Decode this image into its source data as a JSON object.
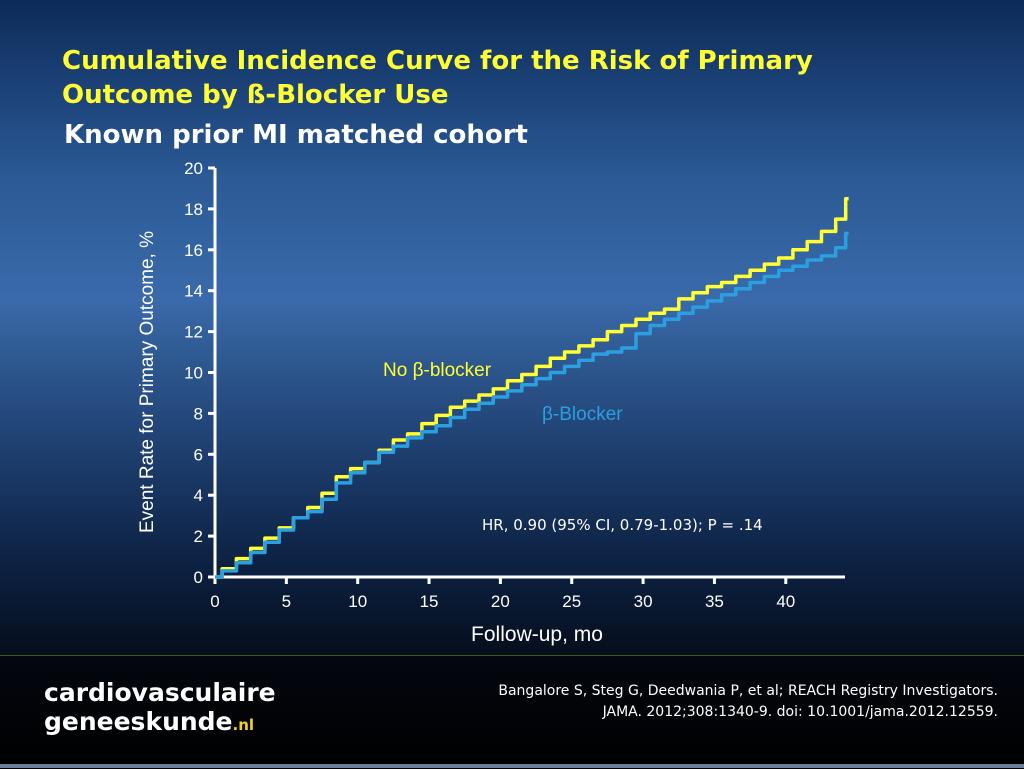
{
  "slide": {
    "title_line1": "Cumulative Incidence Curve for the Risk of Primary",
    "title_line2": "Outcome by ß-Blocker Use",
    "subtitle": "Known prior MI matched cohort"
  },
  "chart_data": {
    "type": "line",
    "xlabel": "Follow-up, mo",
    "ylabel": "Event Rate for Primary Outcome, %",
    "xlim": [
      0,
      44.5
    ],
    "ylim": [
      0,
      20
    ],
    "x_ticks": [
      0,
      5,
      10,
      15,
      20,
      25,
      30,
      35,
      40
    ],
    "y_ticks": [
      0,
      2,
      4,
      6,
      8,
      10,
      12,
      14,
      16,
      18,
      20
    ],
    "grid": false,
    "series": [
      {
        "name": "No β-blocker",
        "color": "#ffff33",
        "points": [
          [
            0,
            0
          ],
          [
            1,
            0.4
          ],
          [
            2,
            0.9
          ],
          [
            3,
            1.4
          ],
          [
            4,
            1.9
          ],
          [
            5,
            2.4
          ],
          [
            6,
            2.9
          ],
          [
            7,
            3.4
          ],
          [
            8,
            4.1
          ],
          [
            9,
            4.9
          ],
          [
            10,
            5.3
          ],
          [
            11,
            5.6
          ],
          [
            12,
            6.2
          ],
          [
            13,
            6.7
          ],
          [
            14,
            7.0
          ],
          [
            15,
            7.5
          ],
          [
            16,
            7.9
          ],
          [
            17,
            8.3
          ],
          [
            18,
            8.6
          ],
          [
            19,
            8.9
          ],
          [
            20,
            9.2
          ],
          [
            21,
            9.6
          ],
          [
            22,
            9.9
          ],
          [
            23,
            10.3
          ],
          [
            24,
            10.7
          ],
          [
            25,
            11.0
          ],
          [
            26,
            11.3
          ],
          [
            27,
            11.6
          ],
          [
            28,
            12.0
          ],
          [
            29,
            12.3
          ],
          [
            30,
            12.6
          ],
          [
            31,
            12.9
          ],
          [
            32,
            13.1
          ],
          [
            33,
            13.6
          ],
          [
            34,
            13.9
          ],
          [
            35,
            14.2
          ],
          [
            36,
            14.4
          ],
          [
            37,
            14.7
          ],
          [
            38,
            15.0
          ],
          [
            39,
            15.3
          ],
          [
            40,
            15.6
          ],
          [
            41,
            16.0
          ],
          [
            42,
            16.4
          ],
          [
            43,
            16.9
          ],
          [
            44,
            17.5
          ],
          [
            44.4,
            18.5
          ]
        ]
      },
      {
        "name": "β-Blocker",
        "color": "#2b9fe0",
        "points": [
          [
            0,
            0
          ],
          [
            1,
            0.3
          ],
          [
            2,
            0.7
          ],
          [
            3,
            1.2
          ],
          [
            4,
            1.7
          ],
          [
            5,
            2.3
          ],
          [
            6,
            2.9
          ],
          [
            7,
            3.2
          ],
          [
            8,
            3.8
          ],
          [
            9,
            4.6
          ],
          [
            10,
            5.1
          ],
          [
            11,
            5.6
          ],
          [
            12,
            6.1
          ],
          [
            13,
            6.4
          ],
          [
            14,
            6.8
          ],
          [
            15,
            7.1
          ],
          [
            16,
            7.4
          ],
          [
            17,
            7.8
          ],
          [
            18,
            8.2
          ],
          [
            19,
            8.5
          ],
          [
            20,
            8.8
          ],
          [
            21,
            9.1
          ],
          [
            22,
            9.4
          ],
          [
            23,
            9.7
          ],
          [
            24,
            10.0
          ],
          [
            25,
            10.3
          ],
          [
            26,
            10.6
          ],
          [
            27,
            10.9
          ],
          [
            28,
            11.0
          ],
          [
            29,
            11.2
          ],
          [
            30,
            11.9
          ],
          [
            31,
            12.3
          ],
          [
            32,
            12.6
          ],
          [
            33,
            12.9
          ],
          [
            34,
            13.2
          ],
          [
            35,
            13.5
          ],
          [
            36,
            13.8
          ],
          [
            37,
            14.1
          ],
          [
            38,
            14.4
          ],
          [
            39,
            14.7
          ],
          [
            40,
            15.0
          ],
          [
            41,
            15.2
          ],
          [
            42,
            15.5
          ],
          [
            43,
            15.7
          ],
          [
            44,
            16.1
          ],
          [
            44.4,
            16.8
          ]
        ]
      }
    ],
    "annotations": {
      "label_no_blocker": "No β-blocker",
      "label_blocker": "β-Blocker",
      "hr_text": "HR, 0.90 (95% CI, 0.79-1.03); P = .14"
    }
  },
  "footer": {
    "logo_line1": "cardiovasculaire",
    "logo_line2": "geneeskunde",
    "logo_tld": ".nl",
    "citation_line1": "Bangalore S, Steg G, Deedwania P, et al; REACH Registry Investigators.",
    "citation_line2": "JAMA. 2012;308:1340-9. doi: 10.1001/jama.2012.12559."
  }
}
